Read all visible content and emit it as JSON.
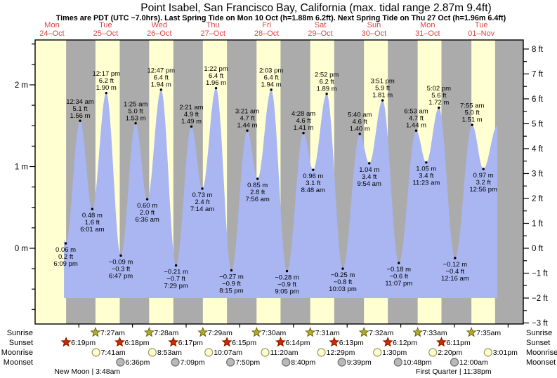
{
  "title": "Point Isabel, San Francisco Bay, California (max. tidal range 2.87m 9.4ft)",
  "subtitle": "Times are PDT (UTC −7.0hrs). Last Spring Tide on Mon 10 Oct (h=1.88m 6.2ft). Next Spring Tide on Thu 27 Oct (h=1.96m 6.4ft)",
  "days": [
    {
      "weekday": "Mon",
      "date": "24–Oct"
    },
    {
      "weekday": "Tue",
      "date": "25–Oct"
    },
    {
      "weekday": "Wed",
      "date": "26–Oct"
    },
    {
      "weekday": "Thu",
      "date": "27–Oct"
    },
    {
      "weekday": "Fri",
      "date": "28–Oct"
    },
    {
      "weekday": "Sat",
      "date": "29–Oct"
    },
    {
      "weekday": "Sun",
      "date": "30–Oct"
    },
    {
      "weekday": "Mon",
      "date": "31–Oct"
    },
    {
      "weekday": "Tue",
      "date": "01–Nov"
    }
  ],
  "axes": {
    "left_meter_labels": [
      {
        "value": 2,
        "label": "2 m"
      },
      {
        "value": 1,
        "label": "1 m"
      },
      {
        "value": 0,
        "label": "0 m"
      }
    ],
    "right_feet_labels": [
      {
        "value": 8,
        "label": "8 ft"
      },
      {
        "value": 7,
        "label": "7 ft"
      },
      {
        "value": 6,
        "label": "6 ft"
      },
      {
        "value": 5,
        "label": "5 ft"
      },
      {
        "value": 4,
        "label": "4 ft"
      },
      {
        "value": 3,
        "label": "3 ft"
      },
      {
        "value": 2,
        "label": "2 ft"
      },
      {
        "value": 1,
        "label": "1 ft"
      },
      {
        "value": 0,
        "label": "0 ft"
      },
      {
        "value": -1,
        "label": "−1 ft"
      },
      {
        "value": -2,
        "label": "−2 ft"
      },
      {
        "value": -3,
        "label": "−3 ft"
      }
    ]
  },
  "chart_data": {
    "type": "area",
    "description": "tide height curve over 9 days",
    "ylim_m": [
      -0.91,
      2.55
    ],
    "extremes": [
      {
        "kind": "low",
        "day": 0,
        "hour": 18.15,
        "height_m": 0.06,
        "m": "0.06 m",
        "ft": "0.2 ft",
        "time": "6:09 pm"
      },
      {
        "kind": "high",
        "day": 1,
        "hour": 0.567,
        "height_m": 1.56,
        "m": "1.56 m",
        "ft": "5.1 ft",
        "time": "12:34 am"
      },
      {
        "kind": "low",
        "day": 1,
        "hour": 6.017,
        "height_m": 0.48,
        "m": "0.48 m",
        "ft": "1.6 ft",
        "time": "6:01 am"
      },
      {
        "kind": "high",
        "day": 1,
        "hour": 12.283,
        "height_m": 1.9,
        "m": "1.90 m",
        "ft": "6.2 ft",
        "time": "12:17 pm"
      },
      {
        "kind": "low",
        "day": 1,
        "hour": 18.783,
        "height_m": -0.09,
        "m": "−0.09 m",
        "ft": "−0.3 ft",
        "time": "6:47 pm"
      },
      {
        "kind": "high",
        "day": 2,
        "hour": 1.417,
        "height_m": 1.53,
        "m": "1.53 m",
        "ft": "5.0 ft",
        "time": "1:25 am"
      },
      {
        "kind": "low",
        "day": 2,
        "hour": 6.6,
        "height_m": 0.6,
        "m": "0.60 m",
        "ft": "2.0 ft",
        "time": "6:36 am"
      },
      {
        "kind": "high",
        "day": 2,
        "hour": 12.783,
        "height_m": 1.94,
        "m": "1.94 m",
        "ft": "6.4 ft",
        "time": "12:47 pm"
      },
      {
        "kind": "low",
        "day": 2,
        "hour": 19.483,
        "height_m": -0.21,
        "m": "−0.21 m",
        "ft": "−0.7 ft",
        "time": "7:29 pm"
      },
      {
        "kind": "high",
        "day": 3,
        "hour": 2.35,
        "height_m": 1.49,
        "m": "1.49 m",
        "ft": "4.9 ft",
        "time": "2:21 am"
      },
      {
        "kind": "low",
        "day": 3,
        "hour": 7.233,
        "height_m": 0.73,
        "m": "0.73 m",
        "ft": "2.4 ft",
        "time": "7:14 am"
      },
      {
        "kind": "high",
        "day": 3,
        "hour": 13.367,
        "height_m": 1.96,
        "m": "1.96 m",
        "ft": "6.4 ft",
        "time": "1:22 pm"
      },
      {
        "kind": "low",
        "day": 3,
        "hour": 20.25,
        "height_m": -0.27,
        "m": "−0.27 m",
        "ft": "−0.9 ft",
        "time": "8:15 pm"
      },
      {
        "kind": "high",
        "day": 4,
        "hour": 3.35,
        "height_m": 1.44,
        "m": "1.44 m",
        "ft": "4.7 ft",
        "time": "3:21 am"
      },
      {
        "kind": "low",
        "day": 4,
        "hour": 7.933,
        "height_m": 0.85,
        "m": "0.85 m",
        "ft": "2.8 ft",
        "time": "7:56 am"
      },
      {
        "kind": "high",
        "day": 4,
        "hour": 14.05,
        "height_m": 1.94,
        "m": "1.94 m",
        "ft": "6.4 ft",
        "time": "2:03 pm"
      },
      {
        "kind": "low",
        "day": 4,
        "hour": 21.083,
        "height_m": -0.28,
        "m": "−0.28 m",
        "ft": "−0.9 ft",
        "time": "9:05 pm"
      },
      {
        "kind": "high",
        "day": 5,
        "hour": 4.467,
        "height_m": 1.41,
        "m": "1.41 m",
        "ft": "4.6 ft",
        "time": "4:28 am"
      },
      {
        "kind": "low",
        "day": 5,
        "hour": 8.8,
        "height_m": 0.96,
        "m": "0.96 m",
        "ft": "3.1 ft",
        "time": "8:48 am"
      },
      {
        "kind": "high",
        "day": 5,
        "hour": 14.867,
        "height_m": 1.89,
        "m": "1.89 m",
        "ft": "6.2 ft",
        "time": "2:52 pm"
      },
      {
        "kind": "low",
        "day": 5,
        "hour": 22.05,
        "height_m": -0.25,
        "m": "−0.25 m",
        "ft": "−0.8 ft",
        "time": "10:03 pm"
      },
      {
        "kind": "high",
        "day": 6,
        "hour": 5.667,
        "height_m": 1.4,
        "m": "1.40 m",
        "ft": "4.6 ft",
        "time": "5:40 am"
      },
      {
        "kind": "low",
        "day": 6,
        "hour": 9.9,
        "height_m": 1.04,
        "m": "1.04 m",
        "ft": "3.4 ft",
        "time": "9:54 am"
      },
      {
        "kind": "high",
        "day": 6,
        "hour": 15.85,
        "height_m": 1.81,
        "m": "1.81 m",
        "ft": "5.9 ft",
        "time": "3:51 pm"
      },
      {
        "kind": "low",
        "day": 6,
        "hour": 23.117,
        "height_m": -0.18,
        "m": "−0.18 m",
        "ft": "−0.6 ft",
        "time": "11:07 pm"
      },
      {
        "kind": "high",
        "day": 7,
        "hour": 6.883,
        "height_m": 1.44,
        "m": "1.44 m",
        "ft": "4.7 ft",
        "time": "6:53 am"
      },
      {
        "kind": "low",
        "day": 7,
        "hour": 11.383,
        "height_m": 1.05,
        "m": "1.05 m",
        "ft": "3.4 ft",
        "time": "11:23 am"
      },
      {
        "kind": "high",
        "day": 7,
        "hour": 17.033,
        "height_m": 1.72,
        "m": "1.72 m",
        "ft": "5.6 ft",
        "time": "5:02 pm"
      },
      {
        "kind": "low",
        "day": 8,
        "hour": 0.267,
        "height_m": -0.12,
        "m": "−0.12 m",
        "ft": "−0.4 ft",
        "time": "12:16 am"
      },
      {
        "kind": "high",
        "day": 8,
        "hour": 7.917,
        "height_m": 1.51,
        "m": "1.51 m",
        "ft": "5.0 ft",
        "time": "7:55 am"
      },
      {
        "kind": "low",
        "day": 8,
        "hour": 12.933,
        "height_m": 0.97,
        "m": "0.97 m",
        "ft": "3.2 ft",
        "time": "12:56 pm"
      }
    ],
    "curve_padding": {
      "start": {
        "day": 0,
        "hour": 12.0,
        "height_m": 1.5
      },
      "end": {
        "day": 8,
        "hour": 19.2,
        "height_m": 1.5
      }
    },
    "daylight": [
      {
        "rise_hour": 0.0,
        "set_hour": 18.317
      },
      {
        "rise_hour": 7.45,
        "set_hour": 18.3
      },
      {
        "rise_hour": 7.467,
        "set_hour": 18.283
      },
      {
        "rise_hour": 7.483,
        "set_hour": 18.25
      },
      {
        "rise_hour": 7.5,
        "set_hour": 18.233
      },
      {
        "rise_hour": 7.517,
        "set_hour": 18.217
      },
      {
        "rise_hour": 7.533,
        "set_hour": 18.2
      },
      {
        "rise_hour": 7.55,
        "set_hour": 18.183
      },
      {
        "rise_hour": 7.583,
        "set_hour": 18.17
      }
    ]
  },
  "sun_moon": {
    "row_labels": [
      "Sunrise",
      "Sunset",
      "Moonrise",
      "Moonset"
    ],
    "sunrise": [
      {
        "day": 1,
        "hour": 7.45,
        "time": "7:27am"
      },
      {
        "day": 2,
        "hour": 7.467,
        "time": "7:28am"
      },
      {
        "day": 3,
        "hour": 7.483,
        "time": "7:29am"
      },
      {
        "day": 4,
        "hour": 7.5,
        "time": "7:30am"
      },
      {
        "day": 5,
        "hour": 7.517,
        "time": "7:31am"
      },
      {
        "day": 6,
        "hour": 7.533,
        "time": "7:32am"
      },
      {
        "day": 7,
        "hour": 7.55,
        "time": "7:33am"
      },
      {
        "day": 8,
        "hour": 7.583,
        "time": "7:35am"
      }
    ],
    "sunset": [
      {
        "day": 0,
        "hour": 18.317,
        "time": "6:19pm"
      },
      {
        "day": 1,
        "hour": 18.3,
        "time": "6:18pm"
      },
      {
        "day": 2,
        "hour": 18.283,
        "time": "6:17pm"
      },
      {
        "day": 3,
        "hour": 18.25,
        "time": "6:15pm"
      },
      {
        "day": 4,
        "hour": 18.233,
        "time": "6:14pm"
      },
      {
        "day": 5,
        "hour": 18.217,
        "time": "6:13pm"
      },
      {
        "day": 6,
        "hour": 18.2,
        "time": "6:12pm"
      },
      {
        "day": 7,
        "hour": 18.183,
        "time": "6:11pm"
      }
    ],
    "moonrise": [
      {
        "day": 1,
        "hour": 7.683,
        "time": "7:41am"
      },
      {
        "day": 2,
        "hour": 8.883,
        "time": "8:53am"
      },
      {
        "day": 3,
        "hour": 10.117,
        "time": "10:07am"
      },
      {
        "day": 4,
        "hour": 11.333,
        "time": "11:20am"
      },
      {
        "day": 5,
        "hour": 12.483,
        "time": "12:29pm"
      },
      {
        "day": 6,
        "hour": 13.5,
        "time": "1:30pm"
      },
      {
        "day": 7,
        "hour": 14.333,
        "time": "2:20pm"
      },
      {
        "day": 8,
        "hour": 15.017,
        "time": "3:01pm"
      }
    ],
    "moonset": [
      {
        "day": 1,
        "hour": 18.6,
        "time": "6:36pm"
      },
      {
        "day": 2,
        "hour": 19.15,
        "time": "7:09pm"
      },
      {
        "day": 3,
        "hour": 19.833,
        "time": "7:50pm"
      },
      {
        "day": 4,
        "hour": 20.667,
        "time": "8:40pm"
      },
      {
        "day": 5,
        "hour": 21.65,
        "time": "9:39pm"
      },
      {
        "day": 6,
        "hour": 22.8,
        "time": "10:48pm"
      },
      {
        "day": 8,
        "hour": 0.0,
        "time": "12:00am"
      }
    ]
  },
  "moon_phases": [
    {
      "label": "New Moon | 3:48am",
      "day": 1,
      "hour": 3.8
    },
    {
      "label": "First Quarter | 11:38pm",
      "day": 7,
      "hour": 23.633
    }
  ],
  "colors": {
    "day_band": "#ffffd2",
    "night_band": "#ababab",
    "water": "#a9b6f2",
    "date_text": "#e04343",
    "sunrise_star_fill": "#b3ab2e",
    "sunrise_star_stroke": "#6b660a",
    "sunset_star_fill": "#dd2606",
    "sunset_star_stroke": "#7a1500",
    "sunset_star_halo": "#ff9100",
    "moonrise_fill": "#ffffcc",
    "moonrise_stroke": "#99996a",
    "moonset_fill": "#b9b9b9",
    "moonset_stroke": "#6e6e6e"
  }
}
